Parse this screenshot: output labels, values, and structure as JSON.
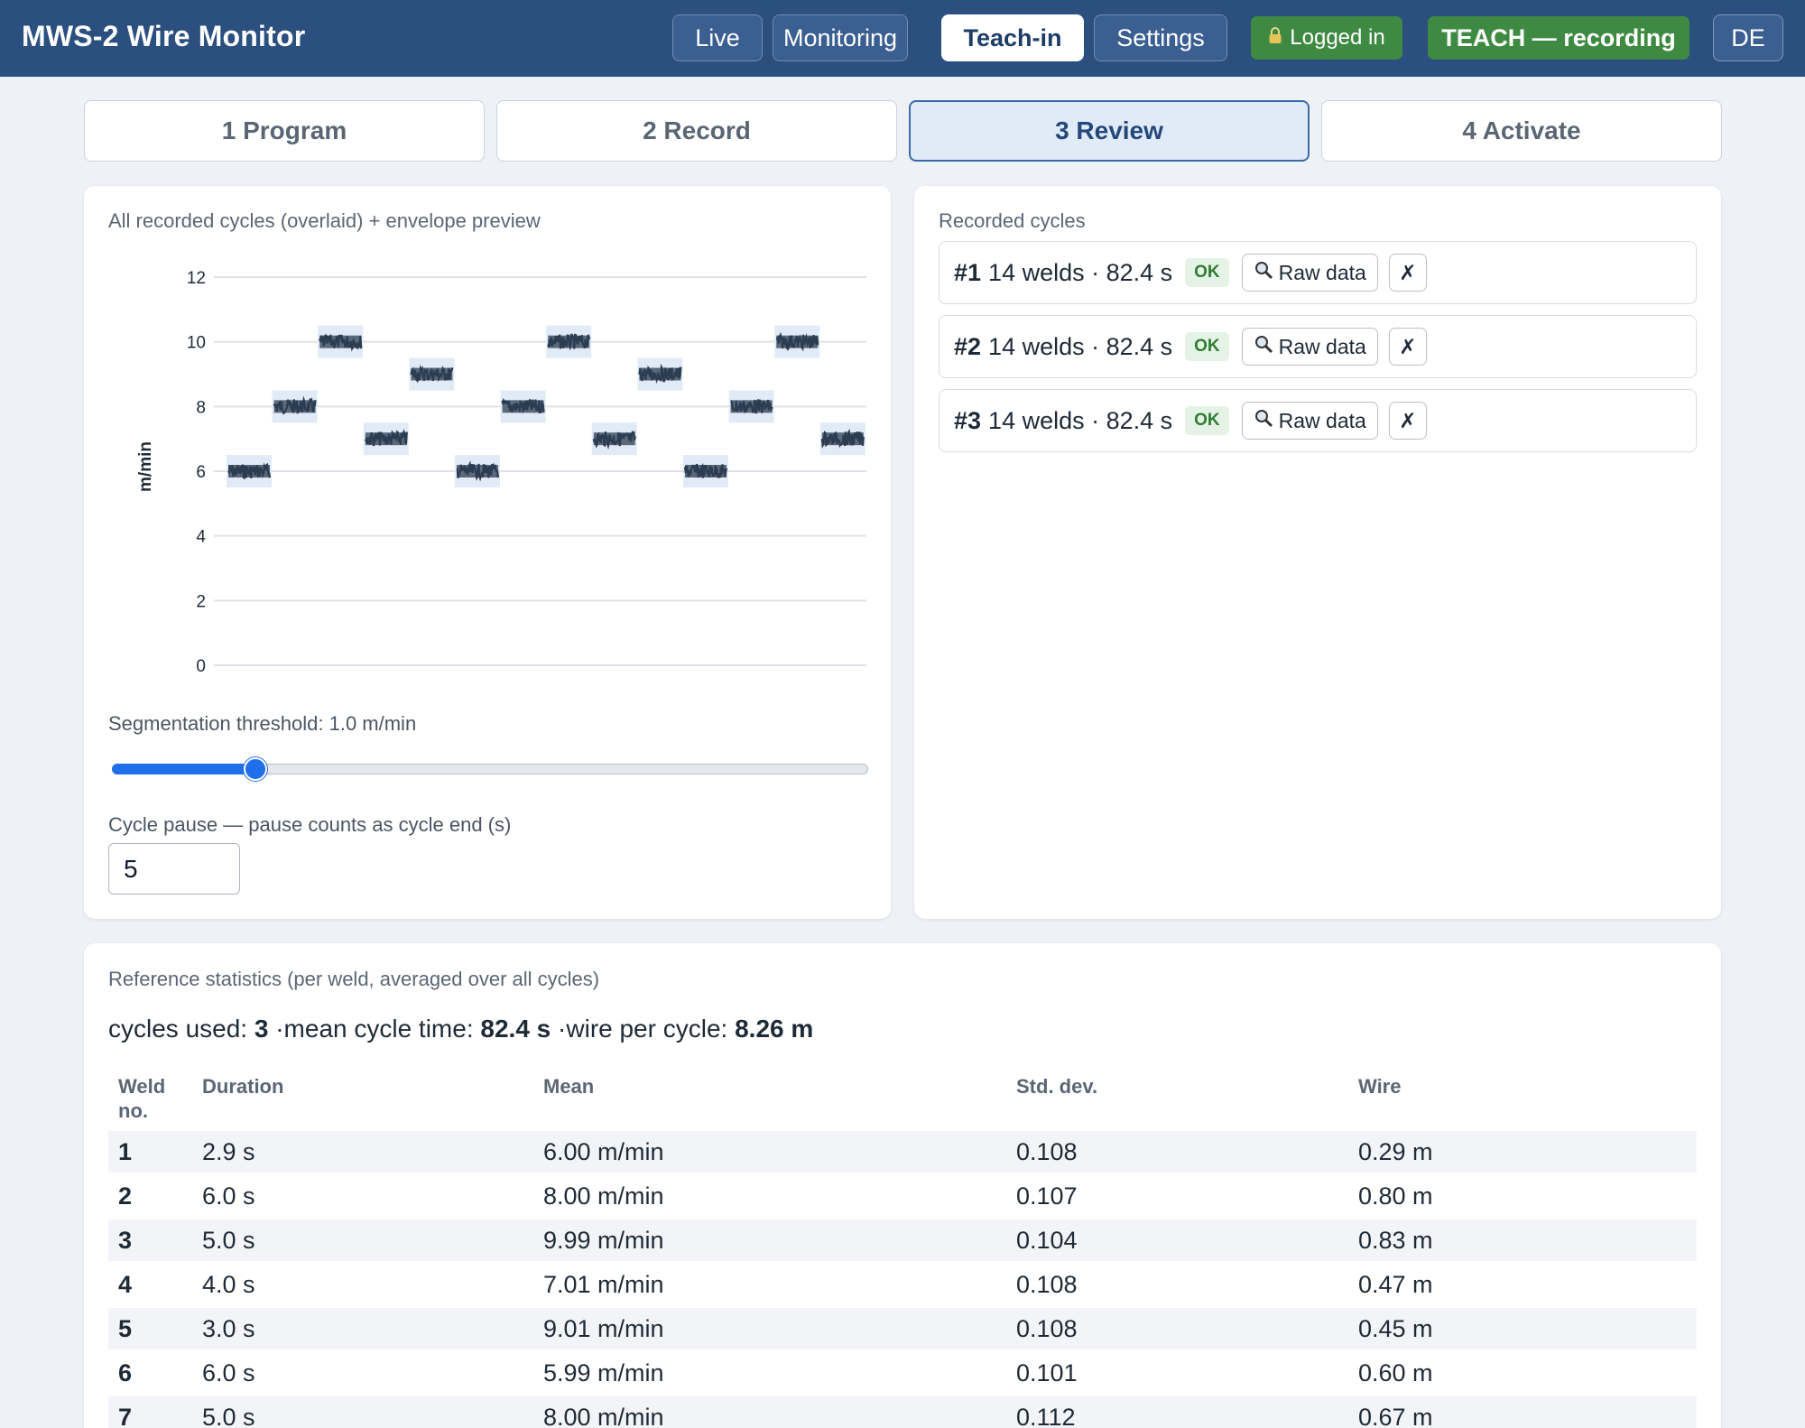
{
  "header": {
    "app_title": "MWS-2 Wire Monitor",
    "nav": [
      "Live",
      "Monitoring",
      "Teach-in",
      "Settings"
    ],
    "active_nav": "Teach-in",
    "login_status": "Logged in",
    "mode_badge": "TEACH — recording",
    "language": "DE"
  },
  "steps": [
    "1 Program",
    "2 Record",
    "3 Review",
    "4 Activate"
  ],
  "active_step": "3 Review",
  "chart_panel": {
    "title": "All recorded cycles (overlaid) + envelope preview",
    "threshold_label": "Segmentation threshold: 1.0 m/min",
    "threshold_fraction": 0.19,
    "pause_label": "Cycle pause — pause counts as cycle end (s)",
    "pause_value": "5"
  },
  "chart_data": {
    "type": "line",
    "title": "",
    "xlabel": "",
    "ylabel": "m/min",
    "ylim": [
      0,
      12
    ],
    "yticks": [
      "12",
      "10",
      "8",
      "6",
      "4",
      "2",
      "0"
    ],
    "grid": true,
    "series": [
      {
        "values": [
          6,
          8,
          10,
          7,
          9,
          6,
          8,
          10,
          7,
          9,
          6,
          8,
          10,
          7
        ]
      }
    ]
  },
  "cycles_panel": {
    "title": "Recorded cycles",
    "cycles": [
      {
        "id": "#1",
        "summary": "14 welds · 82.4 s",
        "status": "OK",
        "raw_label": "Raw data",
        "delete_label": "✗"
      },
      {
        "id": "#2",
        "summary": "14 welds · 82.4 s",
        "status": "OK",
        "raw_label": "Raw data",
        "delete_label": "✗"
      },
      {
        "id": "#3",
        "summary": "14 welds · 82.4 s",
        "status": "OK",
        "raw_label": "Raw data",
        "delete_label": "✗"
      }
    ]
  },
  "stats": {
    "title": "Reference statistics (per weld, averaged over all cycles)",
    "cycles_used_label": "cycles used:",
    "cycles_used": "3",
    "mean_cycle_label": "·mean cycle time:",
    "mean_cycle": "82.4 s",
    "wire_label": "·wire per cycle:",
    "wire": "8.26 m",
    "columns": [
      "Weld no.",
      "Duration",
      "Mean",
      "Std. dev.",
      "Wire"
    ],
    "rows": [
      [
        "1",
        "2.9 s",
        "6.00 m/min",
        "0.108",
        "0.29 m"
      ],
      [
        "2",
        "6.0 s",
        "8.00 m/min",
        "0.107",
        "0.80 m"
      ],
      [
        "3",
        "5.0 s",
        "9.99 m/min",
        "0.104",
        "0.83 m"
      ],
      [
        "4",
        "4.0 s",
        "7.01 m/min",
        "0.108",
        "0.47 m"
      ],
      [
        "5",
        "3.0 s",
        "9.01 m/min",
        "0.108",
        "0.45 m"
      ],
      [
        "6",
        "6.0 s",
        "5.99 m/min",
        "0.101",
        "0.60 m"
      ],
      [
        "7",
        "5.0 s",
        "8.00 m/min",
        "0.112",
        "0.67 m"
      ]
    ]
  },
  "colors": {
    "header_bg": "#2b4f7e",
    "accent": "#1f6feb",
    "ok_green": "#3f8a43",
    "trace": "#2d3e52"
  }
}
